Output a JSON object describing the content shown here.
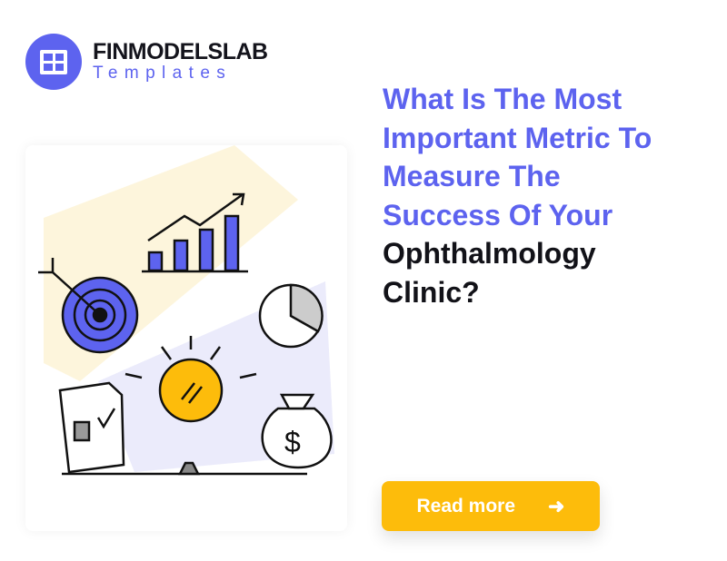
{
  "logo": {
    "brand": "FINMODELSLAB",
    "subtitle": "Templates",
    "icon": "grid-icon"
  },
  "headline": {
    "highlight_lines": [
      "What Is The Most",
      "Important Metric To",
      "Measure The",
      "Success Of Your"
    ],
    "dark_lines": [
      "Ophthalmology",
      "Clinic?"
    ]
  },
  "cta": {
    "label": "Read more",
    "icon": "arrow-right-icon",
    "arrow": "➜"
  },
  "colors": {
    "accent": "#5d63ef",
    "button": "#fdbc0b",
    "text": "#121218"
  }
}
